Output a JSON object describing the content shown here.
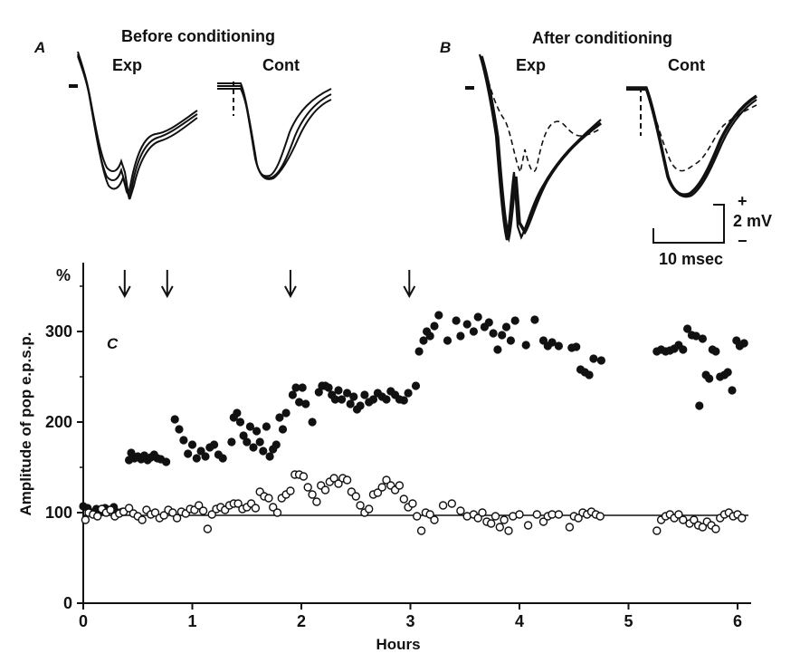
{
  "figure": {
    "panel_a": {
      "label": "A",
      "title": "Before conditioning",
      "exp_label": "Exp",
      "cont_label": "Cont"
    },
    "panel_b": {
      "label": "B",
      "title": "After conditioning",
      "exp_label": "Exp",
      "cont_label": "Cont"
    },
    "scale_bar": {
      "voltage_label": "2 mV",
      "time_label": "10 msec",
      "plus": "+",
      "minus": "−"
    },
    "panel_c": {
      "label": "C"
    }
  },
  "chart_data": {
    "type": "scatter",
    "xlabel": "Hours",
    "ylabel": "Amplitude of pop e.p.s.p.",
    "y_unit_label": "%",
    "xlim": [
      0,
      6.15
    ],
    "ylim": [
      0,
      360
    ],
    "x_ticks": [
      0,
      1,
      2,
      3,
      4,
      5,
      6
    ],
    "y_ticks": [
      0,
      100,
      200,
      300
    ],
    "reference_line_y": 97,
    "conditioning_arrows_hours": [
      0.38,
      0.77,
      1.9,
      2.99
    ],
    "series": [
      {
        "marker": "filled-circle",
        "x": [
          0.0,
          0.04,
          0.08,
          0.12,
          0.16,
          0.2,
          0.24,
          0.28,
          0.32,
          0.36,
          0.42,
          0.44,
          0.47,
          0.5,
          0.53,
          0.56,
          0.59,
          0.62,
          0.65,
          0.68,
          0.71,
          0.76,
          0.84,
          0.88,
          0.92,
          0.96,
          1.0,
          1.04,
          1.08,
          1.12,
          1.16,
          1.2,
          1.24,
          1.28,
          1.36,
          1.38,
          1.41,
          1.44,
          1.47,
          1.5,
          1.53,
          1.56,
          1.59,
          1.62,
          1.65,
          1.68,
          1.71,
          1.74,
          1.77,
          1.8,
          1.83,
          1.86,
          1.92,
          1.95,
          1.98,
          2.01,
          2.04,
          2.1,
          2.16,
          2.19,
          2.22,
          2.25,
          2.28,
          2.31,
          2.34,
          2.37,
          2.42,
          2.45,
          2.48,
          2.51,
          2.54,
          2.58,
          2.62,
          2.66,
          2.7,
          2.74,
          2.78,
          2.82,
          2.86,
          2.9,
          2.94,
          2.98,
          3.05,
          3.08,
          3.12,
          3.15,
          3.18,
          3.22,
          3.26,
          3.34,
          3.42,
          3.46,
          3.52,
          3.58,
          3.62,
          3.68,
          3.72,
          3.76,
          3.8,
          3.84,
          3.88,
          3.92,
          3.96,
          4.06,
          4.14,
          4.22,
          4.26,
          4.3,
          4.36,
          4.48,
          4.52,
          4.56,
          4.6,
          4.64,
          4.68,
          4.75,
          5.26,
          5.3,
          5.34,
          5.38,
          5.42,
          5.46,
          5.5,
          5.54,
          5.58,
          5.62,
          5.65,
          5.68,
          5.71,
          5.74,
          5.77,
          5.8,
          5.84,
          5.88,
          5.91,
          5.95,
          5.99,
          6.02,
          6.06
        ],
        "y": [
          107,
          105,
          100,
          104,
          101,
          105,
          103,
          106,
          100,
          101,
          158,
          166,
          160,
          162,
          159,
          163,
          158,
          161,
          164,
          160,
          159,
          156,
          203,
          192,
          180,
          165,
          175,
          160,
          168,
          162,
          172,
          175,
          164,
          160,
          178,
          205,
          210,
          200,
          185,
          178,
          195,
          172,
          190,
          178,
          168,
          195,
          162,
          170,
          175,
          205,
          192,
          210,
          230,
          238,
          222,
          238,
          220,
          200,
          233,
          240,
          240,
          238,
          230,
          225,
          235,
          225,
          232,
          220,
          228,
          214,
          218,
          230,
          222,
          225,
          232,
          228,
          225,
          234,
          230,
          225,
          224,
          232,
          240,
          278,
          290,
          300,
          295,
          306,
          318,
          290,
          312,
          295,
          308,
          300,
          316,
          305,
          310,
          298,
          280,
          296,
          305,
          290,
          312,
          285,
          313,
          290,
          284,
          288,
          284,
          282,
          283,
          258,
          255,
          252,
          270,
          268,
          278,
          280,
          278,
          279,
          281,
          285,
          280,
          303,
          296,
          295,
          218,
          292,
          252,
          248,
          280,
          278,
          250,
          252,
          255,
          235,
          290,
          284,
          287
        ]
      },
      {
        "marker": "open-circle",
        "x": [
          0.02,
          0.05,
          0.09,
          0.13,
          0.17,
          0.21,
          0.25,
          0.29,
          0.33,
          0.37,
          0.42,
          0.46,
          0.5,
          0.54,
          0.58,
          0.62,
          0.66,
          0.7,
          0.74,
          0.78,
          0.82,
          0.86,
          0.9,
          0.94,
          0.98,
          1.02,
          1.06,
          1.1,
          1.14,
          1.18,
          1.22,
          1.26,
          1.3,
          1.34,
          1.38,
          1.42,
          1.46,
          1.5,
          1.54,
          1.58,
          1.62,
          1.66,
          1.7,
          1.74,
          1.78,
          1.82,
          1.86,
          1.9,
          1.94,
          1.98,
          2.02,
          2.06,
          2.1,
          2.14,
          2.18,
          2.22,
          2.26,
          2.3,
          2.34,
          2.38,
          2.42,
          2.46,
          2.5,
          2.54,
          2.58,
          2.62,
          2.66,
          2.7,
          2.74,
          2.78,
          2.82,
          2.86,
          2.9,
          2.94,
          2.98,
          3.02,
          3.06,
          3.1,
          3.14,
          3.18,
          3.22,
          3.3,
          3.38,
          3.46,
          3.52,
          3.58,
          3.62,
          3.66,
          3.7,
          3.74,
          3.78,
          3.82,
          3.86,
          3.9,
          3.94,
          4.0,
          4.08,
          4.16,
          4.22,
          4.26,
          4.3,
          4.36,
          4.46,
          4.5,
          4.54,
          4.58,
          4.62,
          4.66,
          4.7,
          4.74,
          5.26,
          5.3,
          5.34,
          5.38,
          5.42,
          5.46,
          5.5,
          5.56,
          5.6,
          5.64,
          5.68,
          5.72,
          5.76,
          5.8,
          5.84,
          5.88,
          5.92,
          5.96,
          6.0,
          6.04
        ],
        "y": [
          92,
          100,
          98,
          96,
          104,
          100,
          103,
          96,
          99,
          101,
          105,
          99,
          96,
          92,
          103,
          98,
          100,
          94,
          97,
          103,
          100,
          94,
          101,
          99,
          104,
          103,
          108,
          102,
          82,
          98,
          104,
          106,
          103,
          108,
          110,
          110,
          104,
          106,
          110,
          105,
          123,
          118,
          116,
          106,
          100,
          116,
          120,
          124,
          142,
          142,
          140,
          128,
          120,
          112,
          130,
          125,
          134,
          138,
          132,
          138,
          136,
          123,
          118,
          108,
          100,
          104,
          120,
          122,
          128,
          136,
          130,
          125,
          130,
          115,
          106,
          110,
          96,
          80,
          100,
          98,
          92,
          108,
          110,
          102,
          96,
          98,
          94,
          100,
          90,
          88,
          96,
          84,
          92,
          80,
          96,
          98,
          86,
          98,
          90,
          96,
          98,
          98,
          84,
          96,
          94,
          100,
          98,
          101,
          98,
          96,
          80,
          92,
          96,
          98,
          94,
          98,
          92,
          88,
          92,
          86,
          84,
          90,
          86,
          82,
          94,
          98,
          100,
          96,
          98,
          94
        ]
      }
    ]
  }
}
